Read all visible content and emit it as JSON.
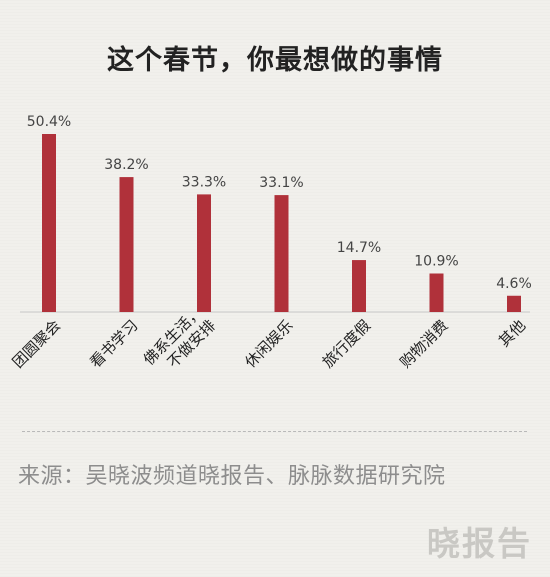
{
  "chart_data": {
    "type": "bar",
    "title": "这个春节，你最想做的事情",
    "categories": [
      "团圆聚会",
      "看书学习",
      "佛系生活，不做安排",
      "休闲娱乐",
      "旅行度假",
      "购物消费",
      "其他"
    ],
    "category_lines": [
      [
        "团圆聚会"
      ],
      [
        "看书学习"
      ],
      [
        "佛系生活，",
        "不做安排"
      ],
      [
        "休闲娱乐"
      ],
      [
        "旅行度假"
      ],
      [
        "购物消费"
      ],
      [
        "其他"
      ]
    ],
    "values": [
      50.4,
      38.2,
      33.3,
      33.1,
      14.7,
      10.9,
      4.6
    ],
    "value_labels": [
      "50.4%",
      "38.2%",
      "33.3%",
      "33.1%",
      "14.7%",
      "10.9%",
      "4.6%"
    ],
    "ylim": [
      0,
      50.4
    ],
    "bar_color": "#b0313a",
    "grid": false,
    "legend": false
  },
  "source": "来源：吴晓波频道晓报告、脉脉数据研究院",
  "watermark": "晓报告"
}
